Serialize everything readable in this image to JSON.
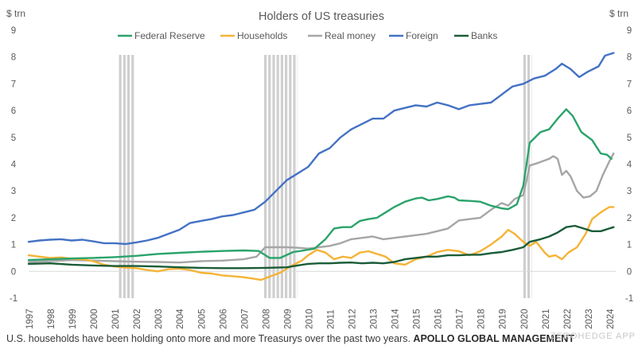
{
  "chart_data": {
    "type": "line",
    "title": "Holders of US treasuries",
    "ylabel_left": "$ trn",
    "ylabel_right": "$ trn",
    "ylim": [
      -1,
      9
    ],
    "yticks": [
      -1,
      0,
      1,
      2,
      3,
      4,
      5,
      6,
      7,
      8,
      9
    ],
    "xlim": [
      1997,
      2024.3
    ],
    "xticks": [
      "1997",
      "1998",
      "1999",
      "2000",
      "2001",
      "2002",
      "2003",
      "2004",
      "2005",
      "2006",
      "2007",
      "2008",
      "2009",
      "2010",
      "2011",
      "2012",
      "2013",
      "2014",
      "2015",
      "2016",
      "2017",
      "2018",
      "2019",
      "2020",
      "2021",
      "2022",
      "2023",
      "2024"
    ],
    "legend_position": "top-center",
    "recessions": [
      [
        2001.2,
        2001.9
      ],
      [
        2007.95,
        2009.5
      ],
      [
        2020.0,
        2020.4
      ]
    ],
    "series": [
      {
        "name": "Federal Reserve",
        "color": "#2aa36b",
        "points": [
          [
            1997,
            0.42
          ],
          [
            1998,
            0.45
          ],
          [
            1999,
            0.48
          ],
          [
            2000,
            0.5
          ],
          [
            2001,
            0.53
          ],
          [
            2002,
            0.58
          ],
          [
            2003,
            0.65
          ],
          [
            2004,
            0.69
          ],
          [
            2005,
            0.73
          ],
          [
            2006,
            0.76
          ],
          [
            2007,
            0.78
          ],
          [
            2007.7,
            0.76
          ],
          [
            2008.2,
            0.5
          ],
          [
            2008.7,
            0.5
          ],
          [
            2009.3,
            0.72
          ],
          [
            2009.8,
            0.78
          ],
          [
            2010.3,
            0.85
          ],
          [
            2010.8,
            1.2
          ],
          [
            2011.2,
            1.6
          ],
          [
            2011.6,
            1.65
          ],
          [
            2012,
            1.65
          ],
          [
            2012.4,
            1.88
          ],
          [
            2012.8,
            1.95
          ],
          [
            2013.2,
            2.0
          ],
          [
            2013.6,
            2.2
          ],
          [
            2014,
            2.4
          ],
          [
            2014.5,
            2.6
          ],
          [
            2015,
            2.72
          ],
          [
            2015.3,
            2.75
          ],
          [
            2015.6,
            2.65
          ],
          [
            2016,
            2.7
          ],
          [
            2016.5,
            2.8
          ],
          [
            2016.8,
            2.75
          ],
          [
            2017,
            2.65
          ],
          [
            2017.5,
            2.63
          ],
          [
            2018,
            2.6
          ],
          [
            2018.5,
            2.45
          ],
          [
            2019,
            2.35
          ],
          [
            2019.3,
            2.32
          ],
          [
            2019.7,
            2.5
          ],
          [
            2020,
            3.2
          ],
          [
            2020.3,
            4.8
          ],
          [
            2020.8,
            5.2
          ],
          [
            2021.2,
            5.3
          ],
          [
            2021.6,
            5.7
          ],
          [
            2022,
            6.05
          ],
          [
            2022.3,
            5.8
          ],
          [
            2022.7,
            5.2
          ],
          [
            2023.2,
            4.9
          ],
          [
            2023.6,
            4.4
          ],
          [
            2023.9,
            4.35
          ],
          [
            2024.1,
            4.2
          ]
        ]
      },
      {
        "name": "Households",
        "color": "#f5b335",
        "points": [
          [
            1997,
            0.6
          ],
          [
            1997.5,
            0.55
          ],
          [
            1998,
            0.5
          ],
          [
            1998.5,
            0.52
          ],
          [
            1999,
            0.47
          ],
          [
            1999.5,
            0.45
          ],
          [
            2000,
            0.38
          ],
          [
            2000.5,
            0.25
          ],
          [
            2001,
            0.18
          ],
          [
            2001.5,
            0.14
          ],
          [
            2002,
            0.12
          ],
          [
            2002.5,
            0.05
          ],
          [
            2003,
            0.0
          ],
          [
            2003.5,
            0.08
          ],
          [
            2004,
            0.1
          ],
          [
            2004.5,
            0.05
          ],
          [
            2005,
            -0.05
          ],
          [
            2005.5,
            -0.08
          ],
          [
            2006,
            -0.15
          ],
          [
            2006.5,
            -0.18
          ],
          [
            2007,
            -0.22
          ],
          [
            2007.5,
            -0.28
          ],
          [
            2007.8,
            -0.32
          ],
          [
            2008.2,
            -0.2
          ],
          [
            2008.7,
            -0.05
          ],
          [
            2009.2,
            0.2
          ],
          [
            2009.7,
            0.4
          ],
          [
            2010,
            0.6
          ],
          [
            2010.4,
            0.8
          ],
          [
            2010.8,
            0.7
          ],
          [
            2011.2,
            0.45
          ],
          [
            2011.6,
            0.55
          ],
          [
            2012,
            0.5
          ],
          [
            2012.4,
            0.7
          ],
          [
            2012.8,
            0.75
          ],
          [
            2013.2,
            0.65
          ],
          [
            2013.6,
            0.55
          ],
          [
            2014,
            0.3
          ],
          [
            2014.5,
            0.25
          ],
          [
            2015,
            0.45
          ],
          [
            2015.5,
            0.55
          ],
          [
            2016,
            0.72
          ],
          [
            2016.5,
            0.8
          ],
          [
            2017,
            0.75
          ],
          [
            2017.5,
            0.6
          ],
          [
            2018,
            0.75
          ],
          [
            2018.5,
            1.0
          ],
          [
            2019,
            1.3
          ],
          [
            2019.3,
            1.55
          ],
          [
            2019.6,
            1.4
          ],
          [
            2020,
            1.1
          ],
          [
            2020.3,
            0.95
          ],
          [
            2020.6,
            1.1
          ],
          [
            2021,
            0.7
          ],
          [
            2021.2,
            0.55
          ],
          [
            2021.5,
            0.6
          ],
          [
            2021.8,
            0.45
          ],
          [
            2022.1,
            0.7
          ],
          [
            2022.5,
            0.9
          ],
          [
            2022.9,
            1.4
          ],
          [
            2023.2,
            1.95
          ],
          [
            2023.6,
            2.2
          ],
          [
            2024,
            2.4
          ],
          [
            2024.2,
            2.4
          ]
        ]
      },
      {
        "name": "Real money",
        "color": "#a6a6a6",
        "points": [
          [
            1997,
            0.35
          ],
          [
            1998,
            0.38
          ],
          [
            1999,
            0.42
          ],
          [
            2000,
            0.4
          ],
          [
            2001,
            0.38
          ],
          [
            2002,
            0.36
          ],
          [
            2003,
            0.35
          ],
          [
            2004,
            0.33
          ],
          [
            2005,
            0.38
          ],
          [
            2006,
            0.4
          ],
          [
            2007,
            0.45
          ],
          [
            2007.6,
            0.55
          ],
          [
            2008,
            0.9
          ],
          [
            2008.5,
            0.9
          ],
          [
            2009,
            0.9
          ],
          [
            2009.5,
            0.88
          ],
          [
            2010,
            0.85
          ],
          [
            2010.5,
            0.9
          ],
          [
            2011,
            0.95
          ],
          [
            2011.5,
            1.05
          ],
          [
            2012,
            1.2
          ],
          [
            2012.5,
            1.25
          ],
          [
            2013,
            1.3
          ],
          [
            2013.5,
            1.2
          ],
          [
            2014,
            1.25
          ],
          [
            2014.5,
            1.3
          ],
          [
            2015,
            1.35
          ],
          [
            2015.5,
            1.4
          ],
          [
            2016,
            1.5
          ],
          [
            2016.5,
            1.6
          ],
          [
            2017,
            1.9
          ],
          [
            2017.5,
            1.95
          ],
          [
            2018,
            2.0
          ],
          [
            2018.5,
            2.3
          ],
          [
            2019,
            2.55
          ],
          [
            2019.3,
            2.45
          ],
          [
            2019.6,
            2.7
          ],
          [
            2020,
            2.85
          ],
          [
            2020.3,
            3.95
          ],
          [
            2020.7,
            4.05
          ],
          [
            2021.2,
            4.2
          ],
          [
            2021.4,
            4.3
          ],
          [
            2021.6,
            4.2
          ],
          [
            2021.8,
            3.6
          ],
          [
            2022,
            3.75
          ],
          [
            2022.2,
            3.55
          ],
          [
            2022.5,
            3.0
          ],
          [
            2022.8,
            2.75
          ],
          [
            2023.1,
            2.8
          ],
          [
            2023.4,
            3.0
          ],
          [
            2023.7,
            3.6
          ],
          [
            2024,
            4.1
          ],
          [
            2024.2,
            4.4
          ]
        ]
      },
      {
        "name": "Foreign",
        "color": "#4472c4",
        "points": [
          [
            1997,
            1.1
          ],
          [
            1997.5,
            1.15
          ],
          [
            1998,
            1.18
          ],
          [
            1998.5,
            1.2
          ],
          [
            1999,
            1.15
          ],
          [
            1999.5,
            1.18
          ],
          [
            2000,
            1.12
          ],
          [
            2000.5,
            1.05
          ],
          [
            2001,
            1.05
          ],
          [
            2001.5,
            1.02
          ],
          [
            2002,
            1.08
          ],
          [
            2002.5,
            1.15
          ],
          [
            2003,
            1.25
          ],
          [
            2003.5,
            1.4
          ],
          [
            2004,
            1.55
          ],
          [
            2004.5,
            1.8
          ],
          [
            2005,
            1.88
          ],
          [
            2005.5,
            1.95
          ],
          [
            2006,
            2.05
          ],
          [
            2006.5,
            2.1
          ],
          [
            2007,
            2.2
          ],
          [
            2007.5,
            2.3
          ],
          [
            2008,
            2.6
          ],
          [
            2008.5,
            3.0
          ],
          [
            2009,
            3.4
          ],
          [
            2009.5,
            3.65
          ],
          [
            2010,
            3.9
          ],
          [
            2010.5,
            4.4
          ],
          [
            2011,
            4.6
          ],
          [
            2011.5,
            5.0
          ],
          [
            2012,
            5.3
          ],
          [
            2012.5,
            5.5
          ],
          [
            2013,
            5.7
          ],
          [
            2013.5,
            5.7
          ],
          [
            2014,
            6.0
          ],
          [
            2014.5,
            6.1
          ],
          [
            2015,
            6.2
          ],
          [
            2015.5,
            6.15
          ],
          [
            2016,
            6.3
          ],
          [
            2016.5,
            6.2
          ],
          [
            2017,
            6.05
          ],
          [
            2017.5,
            6.2
          ],
          [
            2018,
            6.25
          ],
          [
            2018.5,
            6.3
          ],
          [
            2019,
            6.6
          ],
          [
            2019.5,
            6.9
          ],
          [
            2020,
            7.0
          ],
          [
            2020.5,
            7.2
          ],
          [
            2021,
            7.3
          ],
          [
            2021.5,
            7.55
          ],
          [
            2021.8,
            7.75
          ],
          [
            2022.2,
            7.55
          ],
          [
            2022.6,
            7.25
          ],
          [
            2023,
            7.45
          ],
          [
            2023.5,
            7.65
          ],
          [
            2023.8,
            8.05
          ],
          [
            2024.2,
            8.15
          ]
        ]
      },
      {
        "name": "Banks",
        "color": "#1a5c38",
        "points": [
          [
            1997,
            0.28
          ],
          [
            1998,
            0.3
          ],
          [
            1999,
            0.25
          ],
          [
            2000,
            0.22
          ],
          [
            2001,
            0.2
          ],
          [
            2002,
            0.2
          ],
          [
            2003,
            0.18
          ],
          [
            2004,
            0.15
          ],
          [
            2005,
            0.13
          ],
          [
            2006,
            0.12
          ],
          [
            2007,
            0.12
          ],
          [
            2008,
            0.13
          ],
          [
            2009,
            0.15
          ],
          [
            2009.5,
            0.22
          ],
          [
            2010,
            0.28
          ],
          [
            2010.5,
            0.3
          ],
          [
            2011,
            0.3
          ],
          [
            2011.5,
            0.32
          ],
          [
            2012,
            0.33
          ],
          [
            2012.5,
            0.3
          ],
          [
            2013,
            0.32
          ],
          [
            2013.5,
            0.3
          ],
          [
            2014,
            0.35
          ],
          [
            2014.5,
            0.45
          ],
          [
            2015,
            0.5
          ],
          [
            2015.5,
            0.55
          ],
          [
            2016,
            0.55
          ],
          [
            2016.5,
            0.6
          ],
          [
            2017,
            0.6
          ],
          [
            2017.5,
            0.62
          ],
          [
            2018,
            0.62
          ],
          [
            2018.5,
            0.68
          ],
          [
            2019,
            0.72
          ],
          [
            2019.5,
            0.8
          ],
          [
            2020,
            0.9
          ],
          [
            2020.3,
            1.1
          ],
          [
            2020.8,
            1.2
          ],
          [
            2021.2,
            1.3
          ],
          [
            2021.6,
            1.45
          ],
          [
            2022,
            1.65
          ],
          [
            2022.4,
            1.7
          ],
          [
            2022.8,
            1.6
          ],
          [
            2023.2,
            1.5
          ],
          [
            2023.6,
            1.5
          ],
          [
            2024,
            1.6
          ],
          [
            2024.2,
            1.65
          ]
        ]
      }
    ]
  },
  "caption": {
    "text": "U.S. households have been holding onto more and more Treasurys over the past two years.",
    "brand": "APOLLO GLOBAL MANAGEMENT"
  },
  "watermark": "ZEROHEDGE APP"
}
